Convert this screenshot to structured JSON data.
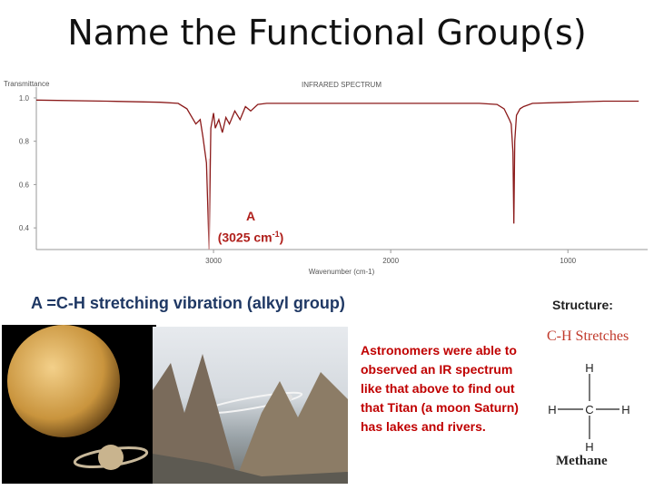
{
  "slide": {
    "title": "Name the Functional Group(s)",
    "answer": "A =C-H stretching vibration (alkyl group)",
    "structure_label": "Structure:",
    "astronomers_text": "Astronomers were able to observed an IR spectrum like that above to find out that Titan (a moon Saturn) has lakes and rivers.",
    "ch_stretches_label": "C-H Stretches",
    "methane_label": "Methane",
    "methane_atoms": {
      "carbon": "C",
      "hydrogen": "H"
    }
  },
  "chart_data": {
    "type": "line",
    "title": "INFRARED SPECTRUM",
    "ylabel": "Transmittance",
    "xlabel": "Wavenumber (cm-1)",
    "y_ticks": [
      "1.0",
      "0.8",
      "0.6",
      "0.4"
    ],
    "x_ticks": [
      "3000",
      "2000",
      "1000"
    ],
    "xlim": [
      4000,
      550
    ],
    "ylim": [
      0.3,
      1.05
    ],
    "grid": false,
    "series": [
      {
        "x": [
          4000,
          3600,
          3300,
          3200,
          3150,
          3100,
          3075,
          3060,
          3040,
          3025,
          3015,
          3000,
          2990,
          2970,
          2950,
          2930,
          2910,
          2880,
          2850,
          2820,
          2790,
          2750,
          2700,
          2500,
          2300,
          2000,
          1800,
          1600,
          1500,
          1400,
          1360,
          1330,
          1320,
          1310,
          1305,
          1300,
          1290,
          1270,
          1250,
          1200,
          1000,
          800,
          600
        ],
        "y": [
          0.99,
          0.985,
          0.98,
          0.975,
          0.95,
          0.88,
          0.9,
          0.82,
          0.7,
          0.3,
          0.86,
          0.93,
          0.86,
          0.9,
          0.84,
          0.91,
          0.88,
          0.94,
          0.9,
          0.96,
          0.94,
          0.97,
          0.975,
          0.975,
          0.975,
          0.975,
          0.975,
          0.975,
          0.975,
          0.97,
          0.95,
          0.9,
          0.88,
          0.75,
          0.42,
          0.8,
          0.92,
          0.95,
          0.96,
          0.975,
          0.98,
          0.985,
          0.985
        ]
      }
    ],
    "annotations": [
      {
        "label": "A",
        "sublabel": "(3025 cm-1)",
        "x": 3025
      }
    ]
  }
}
